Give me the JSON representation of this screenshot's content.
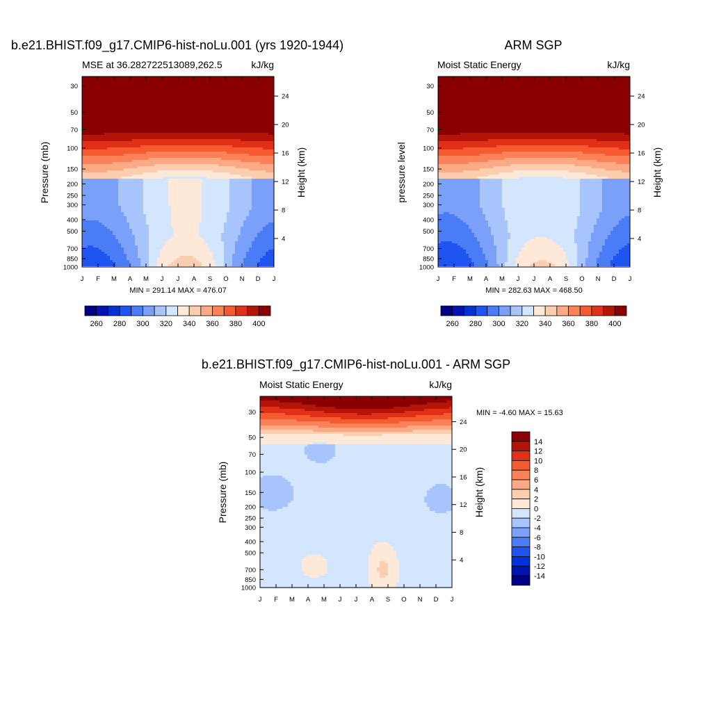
{
  "colors": {
    "mse_levels": [
      250,
      260,
      270,
      280,
      290,
      300,
      310,
      320,
      330,
      340,
      350,
      360,
      370,
      380,
      390,
      400,
      410
    ],
    "mse_colors": [
      "#000084",
      "#0014b0",
      "#0032d4",
      "#2054f0",
      "#4a7cf6",
      "#7aa0fa",
      "#a8c4fc",
      "#d4e6fe",
      "#fee8d8",
      "#fdcdb0",
      "#fcaa85",
      "#fb8258",
      "#f55a30",
      "#e03018",
      "#b51408",
      "#8a0000"
    ],
    "diff_levels": [
      -16,
      -14,
      -12,
      -10,
      -8,
      -6,
      -4,
      -2,
      0,
      2,
      4,
      6,
      8,
      10,
      12,
      14,
      16
    ],
    "diff_colors": [
      "#000084",
      "#0014b0",
      "#0032d4",
      "#2054f0",
      "#4a7cf6",
      "#7aa0fa",
      "#a8c4fc",
      "#d4e6fe",
      "#fee8d8",
      "#fdcdb0",
      "#fcaa85",
      "#fb8258",
      "#f55a30",
      "#e03018",
      "#b51408",
      "#8a0000"
    ]
  },
  "axes": {
    "months": [
      "J",
      "F",
      "M",
      "A",
      "M",
      "J",
      "J",
      "A",
      "S",
      "O",
      "N",
      "D",
      "J"
    ],
    "pressure_ticks": [
      30,
      50,
      70,
      100,
      150,
      200,
      250,
      300,
      400,
      500,
      700,
      850,
      1000
    ],
    "pressure_tick_labels": [
      "30",
      "50",
      "70",
      "100",
      "150",
      "200",
      "250",
      "300",
      "400",
      "500",
      "700",
      "850",
      "1000"
    ],
    "height_ticks": [
      4,
      8,
      12,
      16,
      20,
      24
    ],
    "height_tick_labels": [
      "4",
      "8",
      "12",
      "16",
      "20",
      "24"
    ],
    "colorbar_tick_labels": [
      "260",
      "280",
      "300",
      "320",
      "340",
      "360",
      "380",
      "400"
    ],
    "diff_colorbar_labels": [
      "14",
      "12",
      "10",
      "8",
      "6",
      "4",
      "2",
      "0",
      "-2",
      "-4",
      "-6",
      "-8",
      "-10",
      "-12",
      "-14"
    ]
  },
  "chart_data": [
    {
      "type": "heatmap",
      "title": "b.e21.BHIST.f09_g17.CMIP6-hist-noLu.001 (yrs 1920-1944)",
      "left_subtitle": "MSE at 36.282722513089,262.5",
      "right_subtitle": "kJ/kg",
      "ylabel": "Pressure (mb)",
      "ylabel_right": "Height (km)",
      "ylim": [
        1000,
        25
      ],
      "minmax_text": "MIN = 291.14 MAX = 476.07",
      "min": 291.14,
      "max": 476.07,
      "variant": "model"
    },
    {
      "type": "heatmap",
      "title": "ARM SGP",
      "left_subtitle": "Moist Static Energy",
      "right_subtitle": "kJ/kg",
      "ylabel": "pressure level",
      "ylabel_right": "Height (km)",
      "ylim": [
        1000,
        25
      ],
      "minmax_text": "MIN = 282.63 MAX = 468.50",
      "min": 282.63,
      "max": 468.5,
      "variant": "obs"
    },
    {
      "type": "heatmap",
      "title": "b.e21.BHIST.f09_g17.CMIP6-hist-noLu.001 - ARM SGP",
      "left_subtitle": "Moist Static Energy",
      "right_subtitle": "kJ/kg",
      "ylabel": "Pressure (mb)",
      "ylabel_right": "Height (km)",
      "ylim": [
        1000,
        25
      ],
      "minmax_text": "MIN =  -4.60 MAX =  15.63",
      "min": -4.6,
      "max": 15.63,
      "variant": "diff"
    }
  ]
}
